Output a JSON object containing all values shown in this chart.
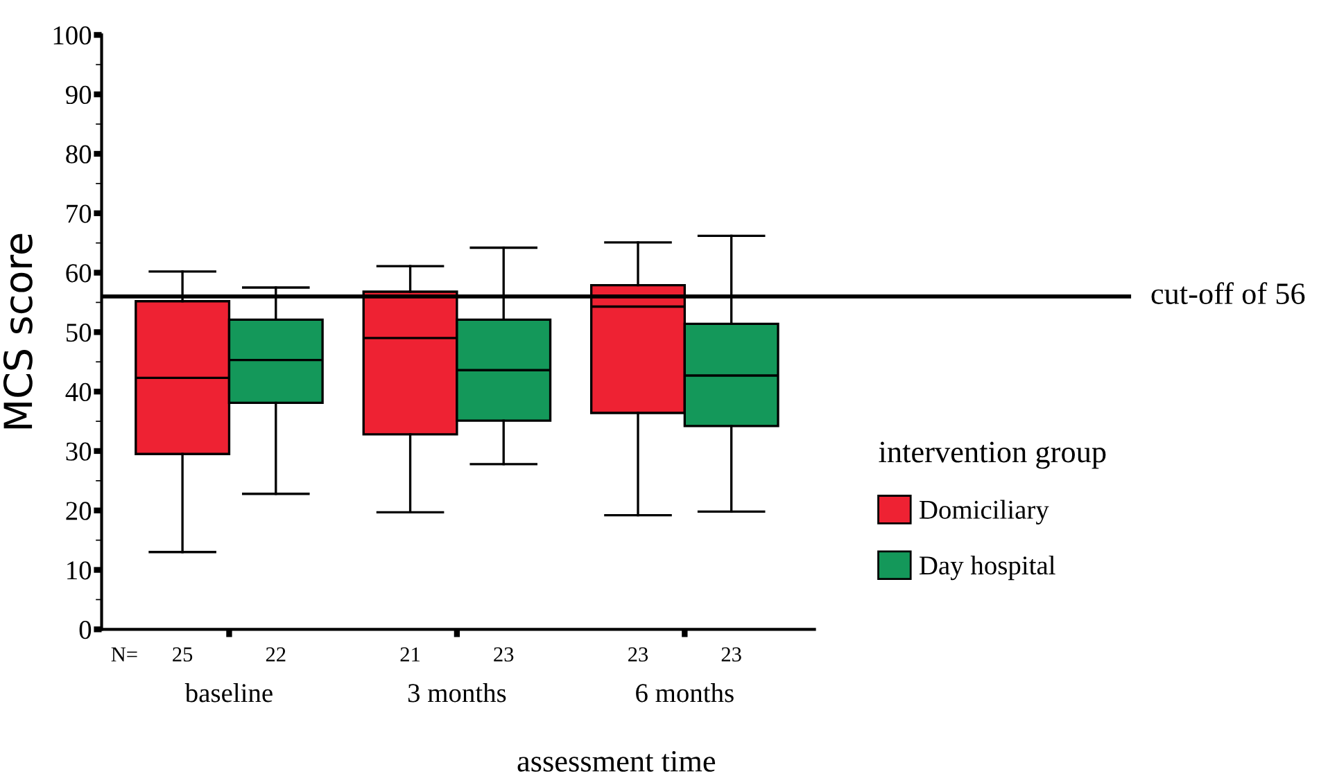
{
  "chart_data": {
    "type": "box",
    "xlabel": "assessment time",
    "ylabel": "MCS score",
    "legend_title": "intervention group",
    "categories": [
      "baseline",
      "3 months",
      "6 months"
    ],
    "series": [
      {
        "name": "Domiciliary",
        "color": "#ee2233",
        "boxes": [
          {
            "low": 13,
            "q1": 29.5,
            "median": 42.3,
            "q3": 55.2,
            "high": 60.2
          },
          {
            "low": 19.7,
            "q1": 32.8,
            "median": 49,
            "q3": 56.8,
            "high": 61.1
          },
          {
            "low": 19.2,
            "q1": 36.4,
            "median": 54.3,
            "q3": 57.9,
            "high": 65.1
          }
        ]
      },
      {
        "name": "Day hospital",
        "color": "#14985a",
        "boxes": [
          {
            "low": 22.8,
            "q1": 38.1,
            "median": 45.3,
            "q3": 52.1,
            "high": 57.5
          },
          {
            "low": 27.8,
            "q1": 35.1,
            "median": 43.6,
            "q3": 52.1,
            "high": 64.2
          },
          {
            "low": 19.8,
            "q1": 34.2,
            "median": 42.7,
            "q3": 51.4,
            "high": 66.2
          }
        ]
      }
    ],
    "annotations": [
      "N=",
      "25",
      "22",
      "21",
      "23",
      "23",
      "23"
    ],
    "ref_lines": [
      {
        "axis": "y",
        "value": 56,
        "label": "cut-off of 56",
        "color": "#000000"
      }
    ],
    "ylim": [
      0,
      100
    ],
    "yticks": [
      0,
      10,
      20,
      30,
      40,
      50,
      60,
      70,
      80,
      90,
      100
    ],
    "grid": false,
    "legend": "right"
  }
}
